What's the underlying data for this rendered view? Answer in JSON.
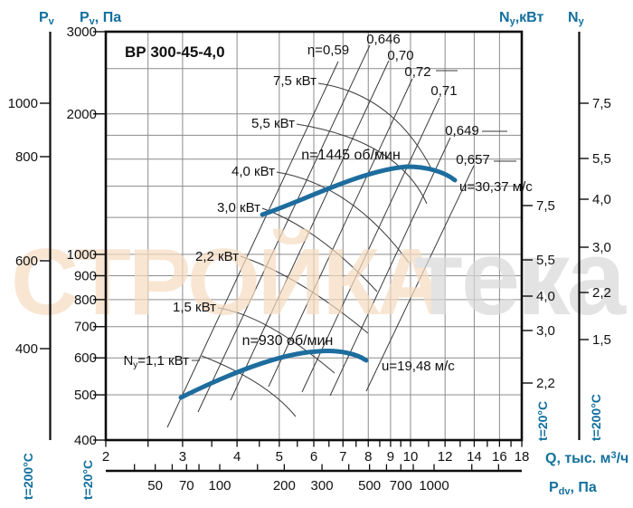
{
  "title": "ВР 300-45-4,0",
  "watermark": {
    "part1": "СТРОЙКА",
    "part2": "тека",
    "color1": "#f6dcc1",
    "color2": "#d8d8d8"
  },
  "colors": {
    "accent": "#13709e",
    "curve": "#1d6d9e",
    "grid": "#8c8c8c",
    "line": "#3a3a3a"
  },
  "axes": {
    "left_outer": {
      "name_main": "P",
      "name_sub": "v",
      "temp": "t=200°C",
      "ticks": [
        "1000",
        "800",
        "600",
        "400"
      ]
    },
    "left_inner": {
      "name_main": "P",
      "name_sub": "v",
      "name_rest": ", Па",
      "temp": "t=20°C",
      "ticks": [
        "3000",
        "2000",
        "1000",
        "900",
        "800",
        "700",
        "600",
        "500",
        "400"
      ]
    },
    "right_inner": {
      "name_main": "N",
      "name_sub": "y",
      "name_rest": ",кВт",
      "temp": "t=20°C",
      "ticks": [
        "7,5",
        "5,5",
        "4,0",
        "3,0",
        "2,2"
      ]
    },
    "right_outer": {
      "name_main": "N",
      "name_sub": "y",
      "temp": "t=200°C",
      "ticks": [
        "7,5",
        "5,5",
        "4,0",
        "3,0",
        "2,2",
        "1,5"
      ]
    },
    "bottom_q": {
      "label_main": "Q, тыс. м",
      "label_sup": "3",
      "label_rest": "/ч",
      "ticks": [
        "2",
        "3",
        "4",
        "5",
        "6",
        "7",
        "8",
        "9",
        "10",
        "12",
        "14",
        "16",
        "18"
      ]
    },
    "bottom_pdv": {
      "name_main": "P",
      "name_sub": "dv",
      "name_rest": ", Па",
      "ticks": [
        "50",
        "70",
        "100",
        "200",
        "300",
        "500",
        "700",
        "1000"
      ]
    }
  },
  "labels": {
    "eta": [
      "η=0,59",
      "0,646",
      "0,70",
      "0,72",
      "0,71",
      "0,649",
      "0,657"
    ],
    "power_upper": [
      "7,5 кВт",
      "5,5 кВт",
      "4,0 кВт",
      "3,0 кВт"
    ],
    "power_lower": [
      "2,2 кВт",
      "1,5 кВт"
    ],
    "power_ny_main": "N",
    "power_ny_sub": "y",
    "power_ny_rest": "=1,1 кВт",
    "speed_upper": "n=1445 об/мин",
    "speed_lower": "n=930 об/мин",
    "u_upper": "u=30,37 м/с",
    "u_lower": "u=19,48 м/с"
  },
  "chart_data": {
    "type": "line",
    "title": "ВР 300-45-4,0",
    "x_axis": {
      "label": "Q, тыс. м³/ч",
      "scale": "log",
      "range": [
        2,
        18
      ],
      "ticks": [
        2,
        3,
        4,
        5,
        6,
        7,
        8,
        9,
        10,
        12,
        14,
        16,
        18
      ]
    },
    "y_axis": {
      "label": "Pv, Па (t=20°C)",
      "scale": "log",
      "range": [
        400,
        3000
      ],
      "ticks": [
        3000,
        2000,
        1000,
        900,
        800,
        700,
        600,
        500,
        400
      ]
    },
    "secondary_x_axis": {
      "label": "Pdv, Па",
      "scale": "log",
      "ticks": [
        50,
        70,
        100,
        200,
        300,
        500,
        700,
        1000
      ]
    },
    "left_axis_t200": {
      "label": "Pv (t=200°C)",
      "ticks": [
        1000,
        800,
        600,
        400
      ]
    },
    "right_axis_t20": {
      "label": "Ny, кВт (t=20°C)",
      "ticks": [
        7.5,
        5.5,
        4.0,
        3.0,
        2.2
      ]
    },
    "right_axis_t200": {
      "label": "Ny (t=200°C)",
      "ticks": [
        7.5,
        5.5,
        4.0,
        3.0,
        2.2,
        1.5
      ]
    },
    "series": [
      {
        "name": "n=1445 об/мин",
        "tip_speed": "u=30,37 м/с",
        "points_q_p": [
          [
            4.6,
            1210
          ],
          [
            6.0,
            1330
          ],
          [
            7.5,
            1470
          ],
          [
            9.6,
            1545
          ],
          [
            11.0,
            1515
          ],
          [
            12.6,
            1445
          ]
        ]
      },
      {
        "name": "n=930 об/мин",
        "tip_speed": "u=19,48 м/с",
        "points_q_p": [
          [
            3.0,
            500
          ],
          [
            4.0,
            557
          ],
          [
            5.0,
            598
          ],
          [
            6.1,
            620
          ],
          [
            7.0,
            612
          ],
          [
            7.9,
            592
          ]
        ]
      }
    ],
    "efficiency_lines": [
      0.59,
      0.646,
      0.7,
      0.72,
      0.71,
      0.649,
      0.657
    ],
    "power_lines_kw": [
      7.5,
      5.5,
      4.0,
      3.0,
      2.2,
      1.5,
      1.1
    ],
    "grid": {
      "q_lines": [
        2.5,
        3,
        4,
        5,
        6,
        7,
        8,
        9,
        10,
        12,
        14,
        16
      ],
      "p_lines": [
        500,
        600,
        700,
        800,
        900,
        1000,
        1200,
        1400,
        1600,
        1800,
        2000,
        2500
      ],
      "q_minor_ticks": [
        2,
        2.5,
        3,
        3.5,
        4,
        4.5,
        5,
        5.5,
        6,
        6.5,
        7,
        7.5,
        8,
        8.5,
        9,
        9.5,
        10,
        11,
        12,
        13,
        14,
        15,
        16,
        17,
        18
      ],
      "pdv_minor_ticks": [
        40,
        60,
        80,
        150,
        400,
        600,
        800,
        1500,
        2000
      ]
    },
    "legend_position": "none",
    "grid_on": true
  }
}
